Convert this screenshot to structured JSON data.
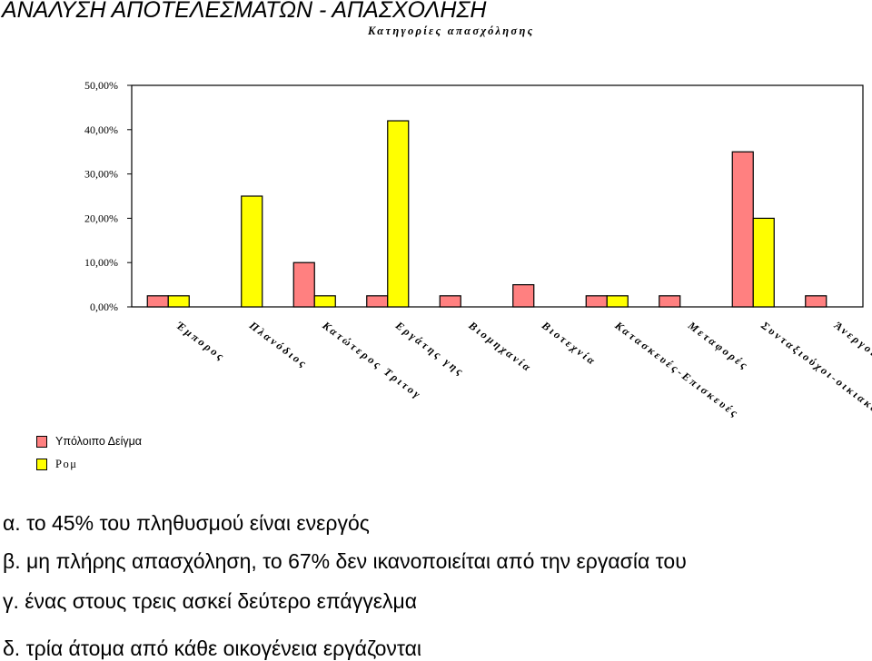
{
  "page": {
    "title": "ΑΝΑΛΥΣΗ ΑΠΟΤΕΛΕΣΜΑΤΩΝ - ΑΠΑΣΧΟΛΗΣΗ",
    "findings": [
      "α. το 45% του πληθυσμού είναι ενεργός",
      "β. μη πλήρης απασχόληση, το 67% δεν ικανοποιείται από την εργασία του",
      "γ. ένας στους τρεις ασκεί δεύτερο επάγγελμα",
      "δ. τρία άτομα από κάθε οικογένεια εργάζονται"
    ]
  },
  "chart_data": {
    "type": "bar",
    "title": "Κατηγορίες απασχόλησης",
    "categories": [
      "Έμπορος",
      "Πλανόδιος",
      "Κατώτερος Τριτογ",
      "Εργάτης γης",
      "Βιομηχανία",
      "Βιοτεχνία",
      "Κατασκευές-Επισκευές",
      "Μεταφορές",
      "Συνταξιούχοι-οικιακά",
      "Άνεργοι"
    ],
    "series": [
      {
        "name": "Υπόλοιπο Δείγμα",
        "color": "#ff8080",
        "values": [
          2.5,
          0,
          10,
          2.5,
          2.5,
          5,
          2.5,
          2.5,
          35,
          2.5
        ]
      },
      {
        "name": "Ρομ",
        "color": "#ffff00",
        "values": [
          2.5,
          25,
          2.5,
          42,
          0,
          0,
          2.5,
          0,
          20,
          0
        ]
      }
    ],
    "yticks": [
      "0,00%",
      "10,00%",
      "20,00%",
      "30,00%",
      "40,00%",
      "50,00%"
    ],
    "ylim": [
      0,
      50
    ],
    "grid": false,
    "legend_position": "bottom-left"
  }
}
